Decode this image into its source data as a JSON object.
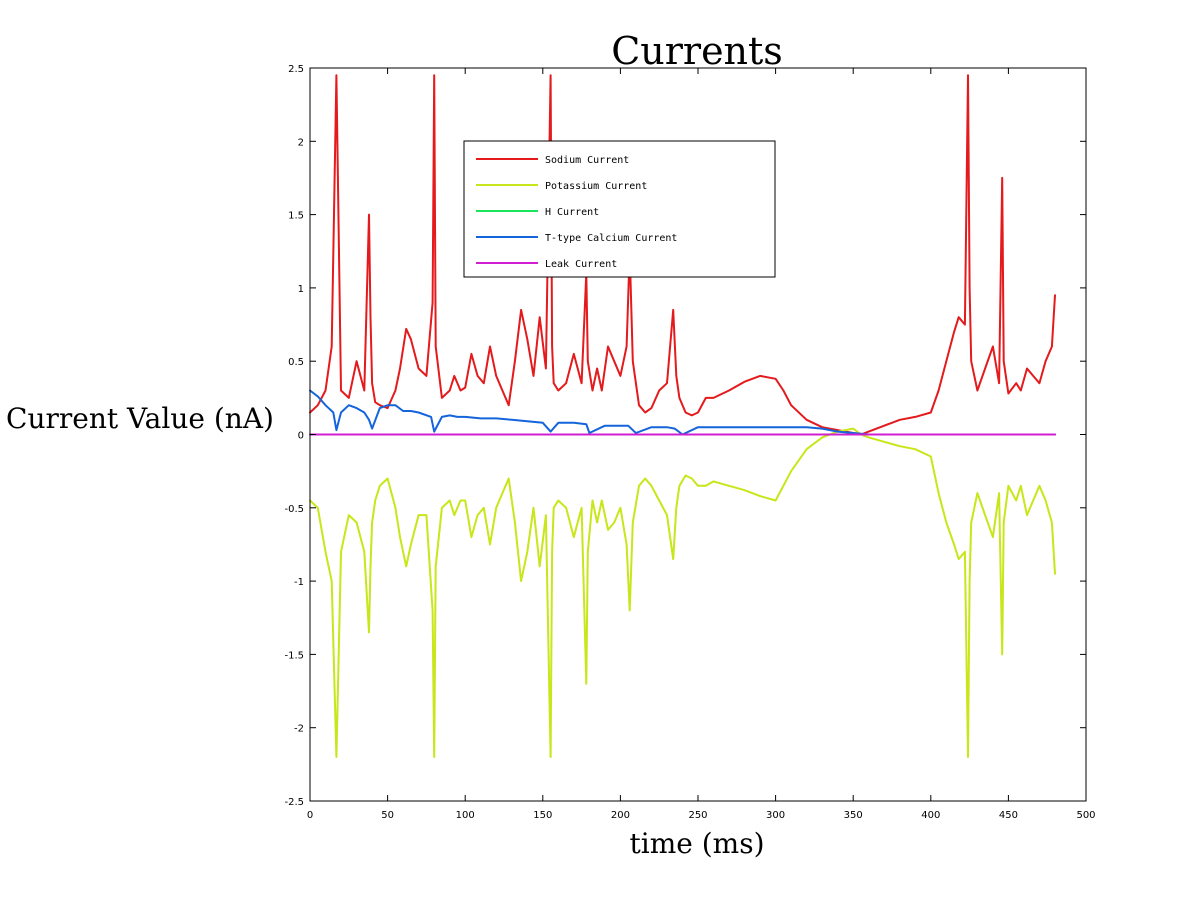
{
  "chart_data": {
    "type": "line",
    "title": "Currents",
    "xlabel": "time (ms)",
    "ylabel": "Current Value (nA)",
    "xlim": [
      0,
      500
    ],
    "ylim": [
      -2.5,
      2.5
    ],
    "xticks": [
      0,
      50,
      100,
      150,
      200,
      250,
      300,
      350,
      400,
      450,
      500
    ],
    "xtick_labels": [
      "0",
      "50",
      "100",
      "150",
      "200",
      "250",
      "300",
      "350",
      "400",
      "450",
      "500"
    ],
    "yticks": [
      -2.5,
      -2,
      -1.5,
      -1,
      -0.5,
      0,
      0.5,
      1,
      1.5,
      2,
      2.5
    ],
    "ytick_labels": [
      "-2.5",
      "-2",
      "-1.5",
      "-1",
      "-0.5",
      "0",
      "0.5",
      "1",
      "1.5",
      "2",
      "2.5"
    ],
    "grid": false,
    "legend_position": "top-center",
    "series": [
      {
        "name": "Sodium Current",
        "color": "#e41a1c",
        "x": [
          0,
          5,
          10,
          14,
          17,
          20,
          25,
          30,
          35,
          38,
          39,
          40,
          42,
          45,
          50,
          55,
          58,
          62,
          65,
          70,
          75,
          79,
          80,
          81,
          85,
          90,
          93,
          97,
          100,
          104,
          108,
          112,
          116,
          120,
          124,
          128,
          132,
          136,
          140,
          144,
          148,
          152,
          155,
          156,
          157,
          160,
          165,
          170,
          175,
          178,
          179,
          182,
          185,
          188,
          192,
          196,
          200,
          204,
          206,
          208,
          212,
          216,
          220,
          225,
          230,
          234,
          236,
          238,
          242,
          246,
          250,
          255,
          260,
          270,
          280,
          290,
          300,
          305,
          310,
          320,
          330,
          340,
          350,
          355,
          360,
          370,
          380,
          390,
          400,
          405,
          410,
          415,
          418,
          422,
          424,
          425,
          426,
          430,
          435,
          440,
          444,
          446,
          447,
          450,
          455,
          458,
          462,
          466,
          470,
          474,
          478,
          480
        ],
        "y": [
          0.15,
          0.2,
          0.3,
          0.6,
          2.45,
          0.3,
          0.25,
          0.5,
          0.3,
          1.5,
          0.8,
          0.35,
          0.22,
          0.2,
          0.18,
          0.3,
          0.45,
          0.72,
          0.65,
          0.45,
          0.4,
          0.9,
          2.45,
          0.6,
          0.25,
          0.3,
          0.4,
          0.3,
          0.32,
          0.55,
          0.4,
          0.35,
          0.6,
          0.4,
          0.3,
          0.2,
          0.5,
          0.85,
          0.65,
          0.4,
          0.8,
          0.45,
          2.45,
          0.6,
          0.35,
          0.3,
          0.35,
          0.55,
          0.35,
          1.1,
          0.5,
          0.3,
          0.45,
          0.3,
          0.6,
          0.5,
          0.4,
          0.6,
          1.25,
          0.5,
          0.2,
          0.15,
          0.18,
          0.3,
          0.35,
          0.85,
          0.4,
          0.25,
          0.15,
          0.13,
          0.15,
          0.25,
          0.25,
          0.3,
          0.36,
          0.4,
          0.38,
          0.3,
          0.2,
          0.1,
          0.05,
          0.03,
          0.01,
          0.0,
          0.02,
          0.06,
          0.1,
          0.12,
          0.15,
          0.3,
          0.5,
          0.7,
          0.8,
          0.75,
          2.45,
          1.0,
          0.5,
          0.3,
          0.45,
          0.6,
          0.35,
          1.75,
          0.5,
          0.28,
          0.35,
          0.3,
          0.45,
          0.4,
          0.35,
          0.5,
          0.6,
          0.95
        ]
      },
      {
        "name": "Potassium Current",
        "color": "#c8e619",
        "x": [
          0,
          5,
          10,
          14,
          17,
          20,
          25,
          30,
          35,
          38,
          39,
          40,
          42,
          45,
          50,
          55,
          58,
          62,
          65,
          70,
          75,
          79,
          80,
          81,
          85,
          90,
          93,
          97,
          100,
          104,
          108,
          112,
          116,
          120,
          124,
          128,
          132,
          136,
          140,
          144,
          148,
          152,
          155,
          156,
          157,
          160,
          165,
          170,
          175,
          178,
          179,
          182,
          185,
          188,
          192,
          196,
          200,
          204,
          206,
          208,
          212,
          216,
          220,
          225,
          230,
          234,
          236,
          238,
          242,
          246,
          250,
          255,
          260,
          270,
          280,
          290,
          300,
          305,
          310,
          320,
          330,
          340,
          350,
          355,
          360,
          370,
          380,
          390,
          400,
          405,
          410,
          415,
          418,
          422,
          424,
          425,
          426,
          430,
          435,
          440,
          444,
          446,
          447,
          450,
          455,
          458,
          462,
          466,
          470,
          474,
          478,
          480
        ],
        "y": [
          -0.45,
          -0.5,
          -0.8,
          -1.0,
          -2.2,
          -0.8,
          -0.55,
          -0.6,
          -0.8,
          -1.35,
          -0.9,
          -0.6,
          -0.45,
          -0.35,
          -0.3,
          -0.5,
          -0.7,
          -0.9,
          -0.75,
          -0.55,
          -0.55,
          -1.2,
          -2.2,
          -0.9,
          -0.5,
          -0.45,
          -0.55,
          -0.45,
          -0.45,
          -0.7,
          -0.55,
          -0.5,
          -0.75,
          -0.5,
          -0.4,
          -0.3,
          -0.6,
          -1.0,
          -0.8,
          -0.5,
          -0.9,
          -0.55,
          -2.2,
          -0.8,
          -0.5,
          -0.45,
          -0.5,
          -0.7,
          -0.5,
          -1.7,
          -0.8,
          -0.45,
          -0.6,
          -0.45,
          -0.65,
          -0.6,
          -0.5,
          -0.75,
          -1.2,
          -0.6,
          -0.35,
          -0.3,
          -0.35,
          -0.45,
          -0.55,
          -0.85,
          -0.5,
          -0.35,
          -0.28,
          -0.3,
          -0.35,
          -0.35,
          -0.32,
          -0.35,
          -0.38,
          -0.42,
          -0.45,
          -0.35,
          -0.25,
          -0.1,
          -0.02,
          0.02,
          0.04,
          0.0,
          -0.02,
          -0.05,
          -0.08,
          -0.1,
          -0.15,
          -0.4,
          -0.6,
          -0.75,
          -0.85,
          -0.8,
          -2.2,
          -1.0,
          -0.6,
          -0.4,
          -0.55,
          -0.7,
          -0.4,
          -1.5,
          -0.6,
          -0.35,
          -0.45,
          -0.35,
          -0.55,
          -0.45,
          -0.35,
          -0.45,
          -0.6,
          -0.95
        ]
      },
      {
        "name": "H Current",
        "color": "#19e65a",
        "x": [
          0,
          480
        ],
        "y": [
          0.0,
          0.0
        ]
      },
      {
        "name": "T-type Calcium Current",
        "color": "#1464dc",
        "x": [
          0,
          5,
          10,
          15,
          17,
          20,
          25,
          30,
          35,
          38,
          40,
          45,
          50,
          55,
          60,
          65,
          70,
          78,
          80,
          85,
          90,
          95,
          100,
          110,
          120,
          130,
          140,
          150,
          155,
          160,
          170,
          178,
          180,
          190,
          200,
          205,
          210,
          220,
          230,
          235,
          240,
          250,
          260,
          280,
          300,
          320,
          330,
          340,
          350,
          360,
          400,
          480
        ],
        "y": [
          0.3,
          0.26,
          0.2,
          0.15,
          0.03,
          0.15,
          0.2,
          0.18,
          0.15,
          0.1,
          0.04,
          0.18,
          0.2,
          0.2,
          0.16,
          0.16,
          0.15,
          0.12,
          0.02,
          0.12,
          0.13,
          0.12,
          0.12,
          0.11,
          0.11,
          0.1,
          0.09,
          0.08,
          0.02,
          0.08,
          0.08,
          0.07,
          0.01,
          0.06,
          0.06,
          0.06,
          0.01,
          0.05,
          0.05,
          0.04,
          0.0,
          0.05,
          0.05,
          0.05,
          0.05,
          0.05,
          0.04,
          0.02,
          0.01,
          0.0,
          0.0,
          0.0
        ]
      },
      {
        "name": "Leak Current",
        "color": "#d21ed2",
        "x": [
          0,
          480
        ],
        "y": [
          0.0,
          0.0
        ]
      }
    ]
  }
}
